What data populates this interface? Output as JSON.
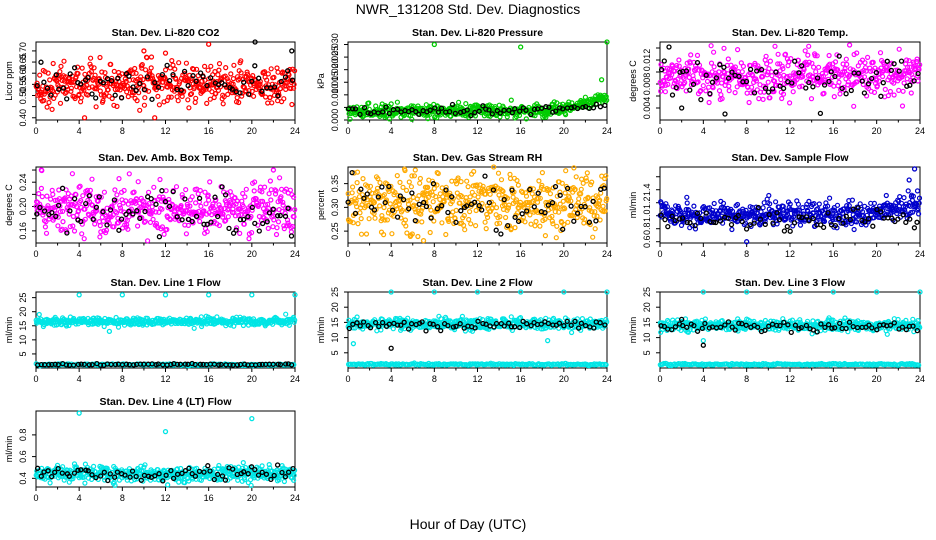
{
  "page": {
    "title": "NWR_131208  Std. Dev. Diagnostics",
    "xlabel": "Hour of Day (UTC)"
  },
  "chart_data": [
    {
      "type": "scatter",
      "title": "Stan. Dev. Li-820 CO2",
      "ylabel": "Licor ppm",
      "xlim": [
        0,
        24
      ],
      "ylim": [
        0.39,
        0.74
      ],
      "yticks": [
        0.4,
        0.45,
        0.5,
        0.55,
        0.6,
        0.65,
        0.7
      ],
      "yticklabels": [
        "0.40",
        "",
        "0.50",
        "0.55",
        "0.60",
        "0.65",
        "0.70"
      ],
      "xticks": [
        0,
        4,
        8,
        12,
        16,
        20,
        24
      ],
      "color": "#ff0000",
      "series": [
        {
          "color": "#ff0000",
          "base": 0.55,
          "spread": 0.045,
          "trend": 0,
          "n": 500,
          "outliers": [
            [
              4.5,
              0.4
            ],
            [
              10,
              0.7
            ],
            [
              11,
              0.4
            ],
            [
              16,
              0.73
            ],
            [
              12,
              0.69
            ]
          ]
        },
        {
          "color": "#000000",
          "base": 0.56,
          "spread": 0.035,
          "trend": 0,
          "n": 70,
          "outliers": [
            [
              20.3,
              0.74
            ],
            [
              23.7,
              0.7
            ]
          ]
        }
      ]
    },
    {
      "type": "scatter",
      "title": "Stan. Dev. Li-820 Pressure",
      "ylabel": "kPa",
      "xlim": [
        0,
        24
      ],
      "ylim": [
        0,
        0.031
      ],
      "yticks": [
        0.0,
        0.005,
        0.01,
        0.015,
        0.02,
        0.025,
        0.03
      ],
      "yticklabels": [
        "0.000",
        "",
        "0.010",
        "0.015",
        "0.020",
        "0.025",
        "0.030"
      ],
      "xticks": [
        0,
        4,
        8,
        12,
        16,
        20,
        24
      ],
      "color": "#00cc00",
      "series": [
        {
          "color": "#00cc00",
          "base": 0.0035,
          "spread": 0.0012,
          "trend": 0.006,
          "n": 500,
          "outliers": [
            [
              8,
              0.03
            ],
            [
              16,
              0.029
            ],
            [
              24,
              0.031
            ],
            [
              23.5,
              0.016
            ]
          ]
        },
        {
          "color": "#000000",
          "base": 0.0035,
          "spread": 0.001,
          "trend": 0.003,
          "n": 70,
          "outliers": []
        }
      ]
    },
    {
      "type": "scatter",
      "title": "Stan. Dev. Li-820 Temp.",
      "ylabel": "degrees C",
      "xlim": [
        0,
        24
      ],
      "ylim": [
        0.002,
        0.015
      ],
      "yticks": [
        0.004,
        0.006,
        0.008,
        0.01,
        0.012,
        0.014
      ],
      "yticklabels": [
        "0.004",
        "",
        "0.008",
        "",
        "0.012",
        ""
      ],
      "xticks": [
        0,
        4,
        8,
        12,
        16,
        20,
        24
      ],
      "color": "#ff00ff",
      "series": [
        {
          "color": "#ff00ff",
          "base": 0.0095,
          "spread": 0.0018,
          "trend": 0,
          "n": 500,
          "outliers": [
            [
              17.5,
              0.0145
            ]
          ]
        },
        {
          "color": "#000000",
          "base": 0.009,
          "spread": 0.0018,
          "trend": 0,
          "n": 70,
          "outliers": [
            [
              2,
              0.004
            ],
            [
              6,
              0.003
            ]
          ]
        }
      ]
    },
    {
      "type": "scatter",
      "title": "Stan. Dev. Amb. Box Temp.",
      "ylabel": "degrees C",
      "xlim": [
        0,
        24
      ],
      "ylim": [
        0.14,
        0.265
      ],
      "yticks": [
        0.16,
        0.18,
        0.2,
        0.22,
        0.24,
        0.26
      ],
      "yticklabels": [
        "0.16",
        "",
        "0.20",
        "",
        "0.24",
        ""
      ],
      "xticks": [
        0,
        4,
        8,
        12,
        16,
        20,
        24
      ],
      "color": "#ff00ff",
      "series": [
        {
          "color": "#ff00ff",
          "base": 0.195,
          "spread": 0.022,
          "trend": 0,
          "n": 500,
          "outliers": [
            [
              0.5,
              0.26
            ],
            [
              22,
              0.26
            ]
          ]
        },
        {
          "color": "#000000",
          "base": 0.19,
          "spread": 0.018,
          "trend": 0,
          "n": 70,
          "outliers": []
        }
      ]
    },
    {
      "type": "scatter",
      "title": "Stan. Dev. Gas Stream RH",
      "ylabel": "percent",
      "xlim": [
        0,
        24
      ],
      "ylim": [
        0.225,
        0.385
      ],
      "yticks": [
        0.25,
        0.3,
        0.35
      ],
      "yticklabels": [
        "0.25",
        "0.30",
        "0.35"
      ],
      "xticks": [
        0,
        4,
        8,
        12,
        16,
        20,
        24
      ],
      "color": "#ffaa00",
      "series": [
        {
          "color": "#ffaa00",
          "base": 0.31,
          "spread": 0.03,
          "trend": 0,
          "n": 520,
          "outliers": [
            [
              7,
              0.23
            ],
            [
              13.5,
              0.385
            ]
          ]
        },
        {
          "color": "#000000",
          "base": 0.305,
          "spread": 0.025,
          "trend": 0,
          "n": 70,
          "outliers": []
        }
      ]
    },
    {
      "type": "scatter",
      "title": "Stan. Dev. Sample Flow",
      "ylabel": "ml/min",
      "xlim": [
        0,
        24
      ],
      "ylim": [
        0.58,
        1.75
      ],
      "yticks": [
        0.6,
        0.8,
        1.0,
        1.2,
        1.4,
        1.6
      ],
      "yticklabels": [
        "0.6",
        "0.8",
        "1.0",
        "1.2",
        "1.4",
        ""
      ],
      "xticks": [
        0,
        4,
        8,
        12,
        16,
        20,
        24
      ],
      "color": "#0000cc",
      "series": [
        {
          "color": "#0000cc",
          "base": 1.02,
          "spread": 0.09,
          "trend": 0.2,
          "n": 500,
          "outliers": [
            [
              23.5,
              1.72
            ],
            [
              8,
              0.6
            ],
            [
              23,
              1.55
            ]
          ]
        },
        {
          "color": "#000000",
          "base": 0.95,
          "spread": 0.09,
          "trend": 0,
          "n": 70,
          "outliers": []
        }
      ]
    },
    {
      "type": "scatter",
      "title": "Stan. Dev. Line 1 Flow",
      "ylabel": "ml/min",
      "xlim": [
        0,
        24
      ],
      "ylim": [
        0,
        27
      ],
      "yticks": [
        5,
        10,
        15,
        20,
        25
      ],
      "yticklabels": [
        "5",
        "10",
        "15",
        "20",
        "25"
      ],
      "xticks": [
        0,
        4,
        8,
        12,
        16,
        20,
        24
      ],
      "color": "#00e5e5",
      "series": [
        {
          "color": "#00e5e5",
          "base": 16.5,
          "spread": 0.7,
          "trend": 0,
          "n": 460,
          "outliers": [
            [
              4,
              26
            ],
            [
              8,
              26
            ],
            [
              12,
              26
            ],
            [
              16,
              26
            ],
            [
              20,
              26
            ],
            [
              24,
              26
            ],
            [
              0.3,
              19
            ],
            [
              6.8,
              13
            ]
          ]
        },
        {
          "color": "#00e5e5",
          "base": 1.2,
          "spread": 0.15,
          "trend": 0,
          "n": 200,
          "outliers": []
        },
        {
          "color": "#000000",
          "base": 1.2,
          "spread": 0.15,
          "trend": 0,
          "n": 70,
          "outliers": []
        }
      ]
    },
    {
      "type": "scatter",
      "title": "Stan. Dev. Line 2 Flow",
      "ylabel": "ml/min",
      "xlim": [
        0,
        24
      ],
      "ylim": [
        0,
        25
      ],
      "yticks": [
        5,
        10,
        15,
        20,
        25
      ],
      "yticklabels": [
        "5",
        "10",
        "15",
        "20",
        "25"
      ],
      "xticks": [
        0,
        4,
        8,
        12,
        16,
        20,
        24
      ],
      "color": "#00e5e5",
      "series": [
        {
          "color": "#00e5e5",
          "base": 14.5,
          "spread": 0.9,
          "trend": 0,
          "n": 460,
          "outliers": [
            [
              4,
              25
            ],
            [
              8,
              25
            ],
            [
              12,
              25
            ],
            [
              16,
              25
            ],
            [
              20,
              25
            ],
            [
              24,
              25
            ],
            [
              18.5,
              9
            ],
            [
              0.5,
              8
            ]
          ]
        },
        {
          "color": "#00e5e5",
          "base": 1.2,
          "spread": 0.15,
          "trend": 0,
          "n": 200,
          "outliers": []
        },
        {
          "color": "#000000",
          "base": 14.2,
          "spread": 0.8,
          "trend": 0,
          "n": 70,
          "outliers": [
            [
              4,
              6.5
            ]
          ]
        }
      ]
    },
    {
      "type": "scatter",
      "title": "Stan. Dev. Line 3 Flow",
      "ylabel": "ml/min",
      "xlim": [
        0,
        24
      ],
      "ylim": [
        0,
        25
      ],
      "yticks": [
        5,
        10,
        15,
        20,
        25
      ],
      "yticklabels": [
        "5",
        "10",
        "15",
        "20",
        "25"
      ],
      "xticks": [
        0,
        4,
        8,
        12,
        16,
        20,
        24
      ],
      "color": "#00e5e5",
      "series": [
        {
          "color": "#00e5e5",
          "base": 14,
          "spread": 0.9,
          "trend": 0,
          "n": 460,
          "outliers": [
            [
              4,
              25
            ],
            [
              8,
              25
            ],
            [
              12,
              25
            ],
            [
              16,
              25
            ],
            [
              20,
              25
            ],
            [
              24,
              25
            ],
            [
              4,
              9
            ]
          ]
        },
        {
          "color": "#00e5e5",
          "base": 1.2,
          "spread": 0.15,
          "trend": 0,
          "n": 200,
          "outliers": []
        },
        {
          "color": "#000000",
          "base": 13.5,
          "spread": 0.8,
          "trend": 0,
          "n": 70,
          "outliers": [
            [
              4,
              7.5
            ],
            [
              2,
              16
            ]
          ]
        }
      ]
    },
    {
      "type": "scatter",
      "title": "Stan. Dev. Line 4 (LT) Flow",
      "ylabel": "ml/min",
      "xlim": [
        0,
        24
      ],
      "ylim": [
        0.32,
        1.02
      ],
      "yticks": [
        0.4,
        0.6,
        0.8
      ],
      "yticklabels": [
        "0.4",
        "0.6",
        "0.8"
      ],
      "xticks": [
        0,
        4,
        8,
        12,
        16,
        20,
        24
      ],
      "color": "#00e5e5",
      "series": [
        {
          "color": "#00e5e5",
          "base": 0.44,
          "spread": 0.035,
          "trend": 0,
          "n": 500,
          "outliers": [
            [
              4,
              1.0
            ],
            [
              20,
              0.95
            ],
            [
              12,
              0.83
            ],
            [
              12.2,
              0.34
            ]
          ]
        },
        {
          "color": "#000000",
          "base": 0.44,
          "spread": 0.03,
          "trend": 0,
          "n": 70,
          "outliers": []
        }
      ]
    }
  ]
}
